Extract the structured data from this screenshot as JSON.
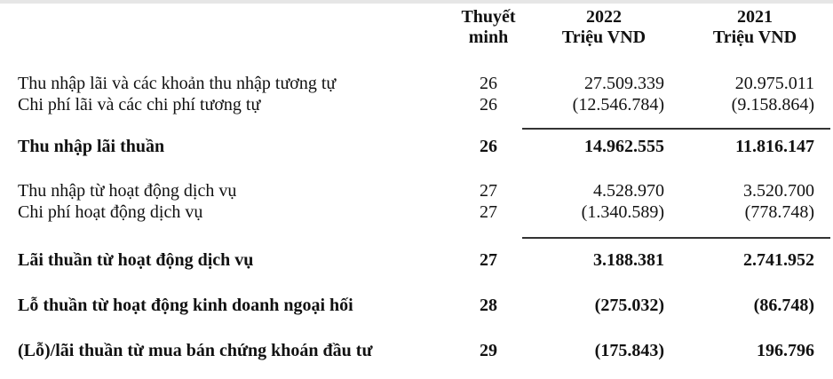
{
  "header": {
    "note_line1": "Thuyết",
    "note_line2": "minh",
    "year1": "2022",
    "year1_unit": "Triệu VND",
    "year2": "2021",
    "year2_unit": "Triệu VND"
  },
  "rows": [
    {
      "label": "Thu nhập lãi và các khoản thu nhập tương tự",
      "note": "26",
      "y2022": "27.509.339",
      "y2021": "20.975.011",
      "bold": false
    },
    {
      "label": "Chi phí lãi và các chi phí tương tự",
      "note": "26",
      "y2022": "(12.546.784)",
      "y2021": "(9.158.864)",
      "bold": false
    },
    {
      "label": "Thu nhập lãi thuần",
      "note": "26",
      "y2022": "14.962.555",
      "y2021": "11.816.147",
      "bold": true
    },
    {
      "label": "Thu nhập từ hoạt động dịch vụ",
      "note": "27",
      "y2022": "4.528.970",
      "y2021": "3.520.700",
      "bold": false
    },
    {
      "label": "Chi phí hoạt động dịch vụ",
      "note": "27",
      "y2022": "(1.340.589)",
      "y2021": "(778.748)",
      "bold": false
    },
    {
      "label": "Lãi thuần từ hoạt động dịch vụ",
      "note": "27",
      "y2022": "3.188.381",
      "y2021": "2.741.952",
      "bold": true
    },
    {
      "label": "Lỗ thuần từ hoạt động kinh doanh ngoại hối",
      "note": "28",
      "y2022": "(275.032)",
      "y2021": "(86.748)",
      "bold": true
    },
    {
      "label": "(Lỗ)/lãi thuần từ mua bán chứng khoán đầu tư",
      "note": "29",
      "y2022": "(175.843)",
      "y2021": "196.796",
      "bold": true
    }
  ]
}
